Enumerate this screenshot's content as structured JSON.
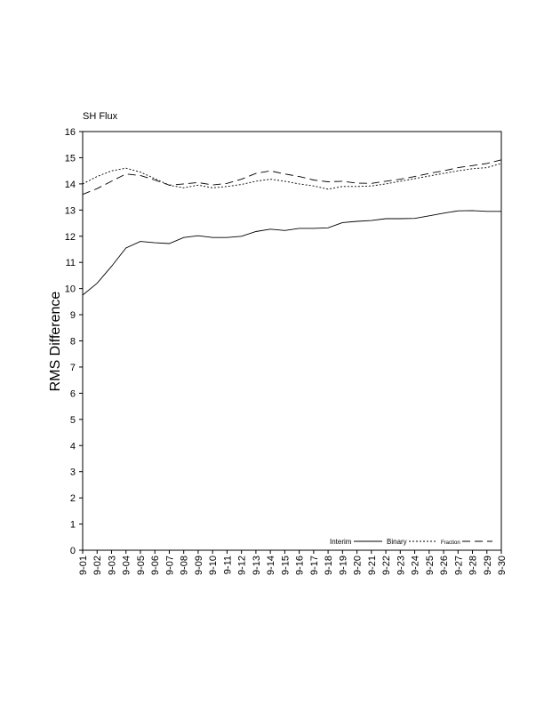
{
  "chart_data": {
    "type": "line",
    "title": "SH Flux",
    "xlabel": "",
    "ylabel": "RMS Difference",
    "ylim": [
      0,
      16
    ],
    "yticks": [
      0,
      1,
      2,
      3,
      4,
      5,
      6,
      7,
      8,
      9,
      10,
      11,
      12,
      13,
      14,
      15,
      16
    ],
    "categories": [
      "9-01",
      "9-02",
      "9-03",
      "9-04",
      "9-05",
      "9-06",
      "9-07",
      "9-08",
      "9-09",
      "9-10",
      "9-11",
      "9-12",
      "9-13",
      "9-14",
      "9-15",
      "9-16",
      "9-17",
      "9-18",
      "9-19",
      "9-20",
      "9-21",
      "9-22",
      "9-23",
      "9-24",
      "9-25",
      "9-26",
      "9-27",
      "9-28",
      "9-29",
      "9-30"
    ],
    "legend_position": "bottom-right",
    "grid": false,
    "series": [
      {
        "name": "Interim",
        "style": "solid",
        "values": [
          9.75,
          10.2,
          10.85,
          11.55,
          11.8,
          11.75,
          11.72,
          11.95,
          12.02,
          11.95,
          11.95,
          12.0,
          12.18,
          12.27,
          12.22,
          12.3,
          12.3,
          12.32,
          12.52,
          12.57,
          12.6,
          12.67,
          12.67,
          12.68,
          12.78,
          12.88,
          12.97,
          12.98,
          12.95,
          12.95
        ]
      },
      {
        "name": "Binary",
        "style": "dotted",
        "values": [
          14.0,
          14.28,
          14.5,
          14.6,
          14.45,
          14.2,
          13.95,
          13.85,
          13.95,
          13.85,
          13.9,
          13.98,
          14.1,
          14.18,
          14.1,
          14.0,
          13.92,
          13.8,
          13.9,
          13.9,
          13.92,
          14.0,
          14.1,
          14.2,
          14.3,
          14.4,
          14.5,
          14.58,
          14.62,
          14.78
        ]
      },
      {
        "name": "Fraction",
        "style": "dashed",
        "values": [
          13.6,
          13.82,
          14.1,
          14.38,
          14.32,
          14.15,
          13.95,
          14.0,
          14.05,
          13.96,
          14.02,
          14.18,
          14.4,
          14.5,
          14.38,
          14.28,
          14.15,
          14.08,
          14.1,
          14.03,
          14.02,
          14.1,
          14.18,
          14.28,
          14.4,
          14.5,
          14.62,
          14.7,
          14.78,
          14.92
        ]
      }
    ]
  }
}
